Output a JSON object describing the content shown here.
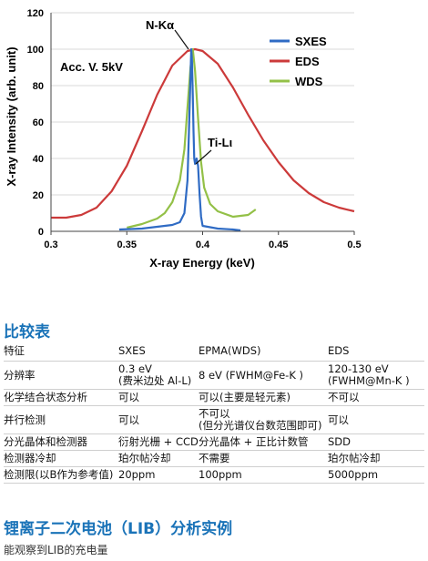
{
  "chart_data": {
    "type": "line",
    "xlabel": "X-ray Energy  (keV)",
    "ylabel": "X-ray  Intensity  (arb. unit)",
    "xlim": [
      0.3,
      0.5
    ],
    "ylim": [
      0,
      120
    ],
    "x_ticks": [
      "0.3",
      "0.35",
      "0.4",
      "0.45",
      "0.5"
    ],
    "y_ticks": [
      "0",
      "20",
      "40",
      "60",
      "80",
      "100",
      "120"
    ],
    "grid": "horizontal",
    "legend_position": "top-right",
    "annotations": [
      "N-Kα",
      "Ti-Lι",
      "Acc. V.  5kV"
    ],
    "series": [
      {
        "name": "SXES",
        "color": "#2f6bc4",
        "x": [
          0.345,
          0.36,
          0.37,
          0.38,
          0.385,
          0.388,
          0.39,
          0.391,
          0.392,
          0.3925,
          0.393,
          0.3935,
          0.394,
          0.3945,
          0.395,
          0.396,
          0.397,
          0.398,
          0.399,
          0.4,
          0.41,
          0.42,
          0.425
        ],
        "y": [
          1,
          1.5,
          2.5,
          3.5,
          5,
          10,
          28,
          55,
          85,
          100,
          94,
          75,
          55,
          40,
          37,
          40,
          36,
          20,
          8,
          3,
          1.5,
          1,
          0.5
        ]
      },
      {
        "name": "EDS",
        "color": "#cc3a3a",
        "x": [
          0.3,
          0.31,
          0.32,
          0.33,
          0.34,
          0.35,
          0.36,
          0.37,
          0.38,
          0.39,
          0.395,
          0.4,
          0.41,
          0.42,
          0.43,
          0.44,
          0.45,
          0.46,
          0.47,
          0.48,
          0.49,
          0.5
        ],
        "y": [
          7.5,
          7.5,
          9,
          13,
          22,
          36,
          55,
          75,
          91,
          99,
          100,
          99,
          92,
          79,
          64,
          50,
          38,
          28,
          21,
          16,
          13,
          11
        ]
      },
      {
        "name": "WDS",
        "color": "#93c047",
        "x": [
          0.35,
          0.36,
          0.37,
          0.375,
          0.38,
          0.385,
          0.388,
          0.39,
          0.392,
          0.3935,
          0.395,
          0.397,
          0.399,
          0.401,
          0.405,
          0.41,
          0.42,
          0.43,
          0.435
        ],
        "y": [
          2,
          4,
          7,
          10,
          16,
          28,
          45,
          68,
          90,
          100,
          88,
          62,
          38,
          24,
          15,
          11,
          8,
          9,
          12
        ]
      }
    ]
  },
  "comparison": {
    "title": "比较表",
    "headers": [
      "特征",
      "SXES",
      "EPMA(WDS)",
      "EDS"
    ],
    "rows": [
      [
        "分辨率",
        "0.3 eV\n(费米边处 Al-L)",
        "8 eV (FWHM@Fe-K )",
        "120-130 eV\n(FWHM@Mn-K )"
      ],
      [
        "化学结合状态分析",
        "可以",
        "可以(主要是轻元素)",
        "不可以"
      ],
      [
        "并行检测",
        "可以",
        "不可以\n(但分光谱仪台数范围即可)",
        "可以"
      ],
      [
        "分光晶体和检测器",
        "衍射光栅 + CCD",
        "分光晶体 + 正比计数管",
        "SDD"
      ],
      [
        "检测器冷却",
        "珀尔帖冷却",
        "不需要",
        "珀尔帖冷却"
      ],
      [
        "检测限(以B作为参考值)",
        "20ppm",
        "100ppm",
        "5000ppm"
      ]
    ]
  },
  "lib": {
    "title": "锂离子二次电池（LIB）分析实例",
    "subtitle": "能观察到LIB的充电量"
  }
}
